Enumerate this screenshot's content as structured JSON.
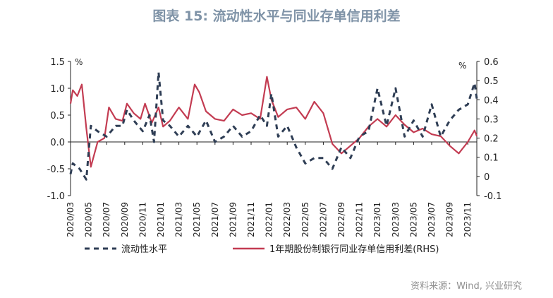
{
  "title": "图表 15: 流动性水平与同业存单信用利差",
  "source": "资料来源：Wind, 兴业研究",
  "colors": {
    "liquidity": "#2f3e55",
    "spread": "#c33c52",
    "title": "#7f93a7"
  },
  "chart_data": {
    "type": "line",
    "title": "图表 15: 流动性水平与同业存单信用利差",
    "x_tick_labels": [
      "2020/03",
      "2020/05",
      "2020/07",
      "2020/09",
      "2020/11",
      "2021/01",
      "2021/03",
      "2021/05",
      "2021/07",
      "2021/09",
      "2021/11",
      "2022/01",
      "2022/03",
      "2022/05",
      "2022/07",
      "2022/09",
      "2022/11",
      "2023/01",
      "2023/03",
      "2023/05",
      "2023/07",
      "2023/09",
      "2023/11"
    ],
    "y_left": {
      "unit": "%",
      "range": [
        -1.0,
        1.5
      ],
      "ticks": [
        "1.5",
        "1.0",
        "0.5",
        "0.0",
        "-0.5",
        "-1.0"
      ]
    },
    "y_right": {
      "unit": "%",
      "range": [
        -0.1,
        0.6
      ],
      "ticks": [
        "0.6",
        "0.5",
        "0.4",
        "0.3",
        "0.2",
        "0.1",
        "0",
        "-0.1"
      ]
    },
    "legend_position": "bottom",
    "series": [
      {
        "name": "流动性水平",
        "axis": "left",
        "style": "dashed",
        "x": [
          "2020/03",
          "2020/03",
          "2020/04",
          "2020/05",
          "2020/05",
          "2020/06",
          "2020/07",
          "2020/08",
          "2020/09",
          "2020/09",
          "2020/10",
          "2020/11",
          "2020/12",
          "2020/12",
          "2021/01",
          "2021/01",
          "2021/02",
          "2021/03",
          "2021/04",
          "2021/05",
          "2021/06",
          "2021/07",
          "2021/08",
          "2021/09",
          "2021/10",
          "2021/11",
          "2021/12",
          "2022/01",
          "2022/01",
          "2022/02",
          "2022/03",
          "2022/04",
          "2022/05",
          "2022/06",
          "2022/07",
          "2022/08",
          "2022/09",
          "2022/10",
          "2022/11",
          "2022/12",
          "2023/01",
          "2023/02",
          "2023/03",
          "2023/04",
          "2023/05",
          "2023/06",
          "2023/07",
          "2023/08",
          "2023/09",
          "2023/10",
          "2023/11",
          "2023/12",
          "2023/12"
        ],
        "values": [
          -0.6,
          -0.4,
          -0.5,
          -0.7,
          0.3,
          0.2,
          0.1,
          0.3,
          0.3,
          0.6,
          0.4,
          0.2,
          0.5,
          0.0,
          1.3,
          0.4,
          0.3,
          0.1,
          0.3,
          0.1,
          0.4,
          0.0,
          0.1,
          0.3,
          0.1,
          0.2,
          0.5,
          0.3,
          0.9,
          0.1,
          0.3,
          -0.1,
          -0.4,
          -0.3,
          -0.3,
          -0.5,
          -0.1,
          -0.3,
          0.1,
          0.2,
          1.0,
          0.3,
          1.0,
          0.1,
          0.4,
          0.1,
          0.7,
          0.1,
          0.4,
          0.6,
          0.7,
          1.1,
          0.8
        ]
      },
      {
        "name": "1年期股份制银行同业存单信用利差(RHS)",
        "axis": "right",
        "style": "solid",
        "x": [
          "2020/03",
          "2020/03",
          "2020/04",
          "2020/04",
          "2020/05",
          "2020/05",
          "2020/06",
          "2020/07",
          "2020/07",
          "2020/08",
          "2020/09",
          "2020/09",
          "2020/10",
          "2020/11",
          "2020/11",
          "2020/12",
          "2021/01",
          "2021/01",
          "2021/02",
          "2021/03",
          "2021/04",
          "2021/05",
          "2021/05",
          "2021/06",
          "2021/07",
          "2021/08",
          "2021/09",
          "2021/10",
          "2021/11",
          "2021/12",
          "2022/01",
          "2022/01",
          "2022/02",
          "2022/03",
          "2022/04",
          "2022/05",
          "2022/06",
          "2022/07",
          "2022/08",
          "2022/09",
          "2022/10",
          "2022/11",
          "2022/12",
          "2023/01",
          "2023/02",
          "2023/03",
          "2023/04",
          "2023/05",
          "2023/06",
          "2023/07",
          "2023/08",
          "2023/09",
          "2023/10",
          "2023/11",
          "2023/12",
          "2023/12"
        ],
        "values": [
          0.38,
          0.45,
          0.42,
          0.48,
          0.25,
          0.05,
          0.18,
          0.2,
          0.36,
          0.3,
          0.29,
          0.38,
          0.33,
          0.3,
          0.38,
          0.28,
          0.36,
          0.26,
          0.29,
          0.36,
          0.3,
          0.48,
          0.44,
          0.34,
          0.3,
          0.29,
          0.35,
          0.32,
          0.33,
          0.3,
          0.52,
          0.4,
          0.31,
          0.35,
          0.36,
          0.3,
          0.39,
          0.33,
          0.17,
          0.12,
          0.16,
          0.2,
          0.26,
          0.3,
          0.26,
          0.32,
          0.27,
          0.23,
          0.25,
          0.22,
          0.21,
          0.16,
          0.12,
          0.18,
          0.24,
          0.21
        ]
      }
    ]
  }
}
